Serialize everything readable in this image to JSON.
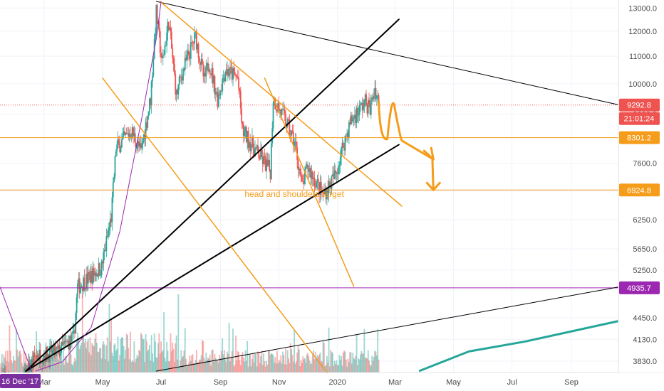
{
  "chart_data": {
    "type": "candlestick",
    "y_axis": {
      "scale": "log",
      "range": [
        3700,
        13300
      ],
      "ticks": [
        "13000.0",
        "12000.0",
        "11000.0",
        "10000.0",
        "9000.0",
        "8300.0",
        "7600.0",
        "6900.0",
        "6250.0",
        "5650.0",
        "5250.0",
        "4900.0",
        "4450.0",
        "4130.0",
        "3830.0"
      ]
    },
    "x_axis": {
      "range": [
        "2019-01-14",
        "2020-10-20"
      ],
      "ticks": [
        {
          "date": "2019-03-01",
          "label": "Mar"
        },
        {
          "date": "2019-05-01",
          "label": "May"
        },
        {
          "date": "2019-07-01",
          "label": "Jul"
        },
        {
          "date": "2019-09-01",
          "label": "Sep"
        },
        {
          "date": "2019-11-01",
          "label": "Nov"
        },
        {
          "date": "2020-01-01",
          "label": "2020"
        },
        {
          "date": "2020-03-01",
          "label": "Mar"
        },
        {
          "date": "2020-05-01",
          "label": "May"
        },
        {
          "date": "2020-07-01",
          "label": "Jul"
        },
        {
          "date": "2020-09-01",
          "label": "Sep"
        }
      ],
      "left_label": "16 Dec '17"
    },
    "price_path": [
      [
        "2019-01-15",
        3650
      ],
      [
        "2019-02-01",
        3450
      ],
      [
        "2019-02-20",
        3900
      ],
      [
        "2019-03-15",
        3950
      ],
      [
        "2019-04-01",
        4150
      ],
      [
        "2019-04-05",
        4950
      ],
      [
        "2019-04-30",
        5300
      ],
      [
        "2019-05-10",
        6300
      ],
      [
        "2019-05-15",
        8000
      ],
      [
        "2019-05-31",
        8500
      ],
      [
        "2019-06-10",
        7900
      ],
      [
        "2019-06-20",
        9500
      ],
      [
        "2019-06-26",
        12800
      ],
      [
        "2019-07-02",
        10700
      ],
      [
        "2019-07-09",
        12400
      ],
      [
        "2019-07-17",
        9600
      ],
      [
        "2019-07-22",
        10300
      ],
      [
        "2019-08-06",
        11800
      ],
      [
        "2019-08-15",
        10100
      ],
      [
        "2019-08-20",
        10800
      ],
      [
        "2019-08-29",
        9500
      ],
      [
        "2019-09-06",
        10500
      ],
      [
        "2019-09-19",
        10200
      ],
      [
        "2019-09-24",
        8500
      ],
      [
        "2019-10-06",
        8000
      ],
      [
        "2019-10-23",
        7400
      ],
      [
        "2019-10-26",
        9500
      ],
      [
        "2019-11-08",
        8800
      ],
      [
        "2019-11-18",
        8100
      ],
      [
        "2019-11-25",
        7000
      ],
      [
        "2019-12-01",
        7500
      ],
      [
        "2019-12-17",
        6800
      ],
      [
        "2019-12-30",
        7300
      ],
      [
        "2020-01-07",
        8100
      ],
      [
        "2020-01-15",
        8800
      ],
      [
        "2020-01-30",
        9400
      ],
      [
        "2020-02-04",
        9150
      ],
      [
        "2020-02-09",
        9850
      ],
      [
        "2020-02-13",
        9400
      ]
    ],
    "volume_baseline": "present",
    "price_labels": [
      {
        "value": 9292.8,
        "text": "9292.8",
        "color": "#ef5350"
      },
      {
        "value": null,
        "text": "21:01:24",
        "color": "#ef5350"
      },
      {
        "value": 8301.2,
        "text": "8301.2",
        "color": "#f59c1a"
      },
      {
        "value": 6924.8,
        "text": "6924.8",
        "color": "#f59c1a"
      },
      {
        "value": 4935.7,
        "text": "4935.7",
        "color": "#9c27b0"
      }
    ],
    "horizontal_levels": [
      {
        "value": 9292.8,
        "color": "#ef5350",
        "style": "dotted"
      },
      {
        "value": 8301.2,
        "color": "#f59c1a",
        "style": "solid"
      },
      {
        "value": 6924.8,
        "color": "#f59c1a",
        "style": "solid"
      },
      {
        "value": 4935.7,
        "color": "#9c27b0",
        "style": "solid"
      }
    ],
    "trend_lines": [
      {
        "color": "#000000",
        "from": [
          "2019-06-26",
          13300
        ],
        "to": [
          "2020-10-20",
          9300
        ],
        "width": 1
      },
      {
        "color": "#000000",
        "from": [
          "2019-02-10",
          3700
        ],
        "to": [
          "2020-03-05",
          12500
        ],
        "width": 2
      },
      {
        "color": "#000000",
        "from": [
          "2019-02-10",
          3700
        ],
        "to": [
          "2020-03-05",
          8100
        ],
        "width": 2
      },
      {
        "color": "#000000",
        "from": [
          "2019-06-26",
          3700
        ],
        "to": [
          "2020-10-20",
          4950
        ],
        "width": 1
      },
      {
        "color": "#9c27b0",
        "from": [
          "2019-01-14",
          4950
        ],
        "to": [
          "2019-02-16",
          3700
        ],
        "width": 1
      },
      {
        "color": "#f59c1a",
        "from": [
          "2019-06-30",
          13300
        ],
        "to": [
          "2020-03-08",
          6550
        ],
        "width": 1.5
      },
      {
        "color": "#f59c1a",
        "from": [
          "2019-05-01",
          10200
        ],
        "to": [
          "2020-01-15",
          3300
        ],
        "width": 1.5
      },
      {
        "color": "#f59c1a",
        "from": [
          "2019-10-17",
          10200
        ],
        "to": [
          "2020-01-18",
          4960
        ],
        "width": 1.5
      }
    ],
    "curves": [
      {
        "color": "#9c27b0",
        "points": [
          [
            "2019-02-20",
            3700
          ],
          [
            "2019-03-20",
            3820
          ],
          [
            "2019-04-19",
            4300
          ],
          [
            "2019-05-19",
            6000
          ],
          [
            "2019-06-11",
            8900
          ],
          [
            "2019-06-26",
            11700
          ],
          [
            "2019-07-01",
            13300
          ]
        ],
        "width": 1
      },
      {
        "color": "#26a69a",
        "points": [
          [
            "2020-03-26",
            3700
          ],
          [
            "2020-05-17",
            3960
          ],
          [
            "2020-07-15",
            4100
          ],
          [
            "2020-10-20",
            4400
          ]
        ],
        "width": 3
      }
    ],
    "projection": {
      "color": "#f59c1a",
      "points": [
        [
          "2020-02-13",
          9400
        ],
        [
          "2020-02-22",
          8300
        ],
        [
          "2020-03-01",
          9150
        ],
        [
          "2020-03-08",
          8300
        ],
        [
          "2020-04-10",
          7700
        ]
      ],
      "second_arrow": [
        [
          "2020-04-09",
          7700
        ],
        [
          "2020-04-10",
          6924.8
        ]
      ]
    },
    "annotations": [
      {
        "text": "head and shoulders target",
        "date": "2019-11-17",
        "value": 6760,
        "color": "#f59c1a"
      }
    ]
  }
}
